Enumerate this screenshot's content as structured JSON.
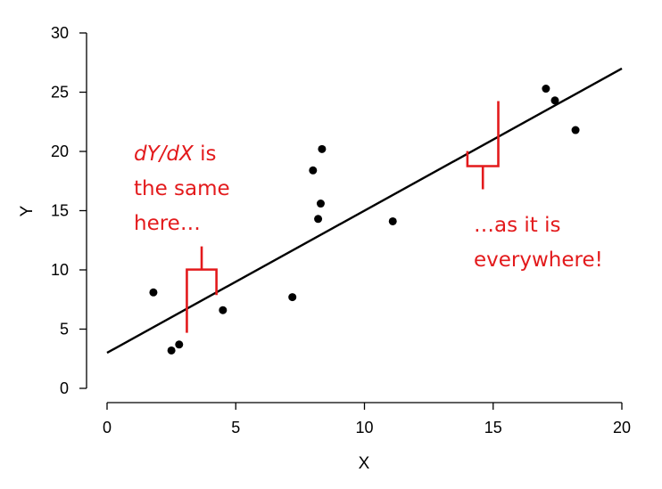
{
  "chart_data": {
    "type": "scatter",
    "title": "",
    "xlabel": "X",
    "ylabel": "Y",
    "xlim": [
      0,
      20
    ],
    "ylim": [
      0,
      30
    ],
    "xticks": [
      0,
      5,
      10,
      15,
      20
    ],
    "yticks": [
      0,
      5,
      10,
      15,
      20,
      25,
      30
    ],
    "grid": false,
    "points": [
      {
        "x": 1.8,
        "y": 8.1
      },
      {
        "x": 2.5,
        "y": 3.2
      },
      {
        "x": 2.8,
        "y": 3.7
      },
      {
        "x": 4.5,
        "y": 6.6
      },
      {
        "x": 7.2,
        "y": 7.7
      },
      {
        "x": 8.0,
        "y": 18.4
      },
      {
        "x": 8.2,
        "y": 14.3
      },
      {
        "x": 8.3,
        "y": 15.6
      },
      {
        "x": 8.35,
        "y": 20.2
      },
      {
        "x": 11.1,
        "y": 14.1
      },
      {
        "x": 17.05,
        "y": 25.3
      },
      {
        "x": 17.4,
        "y": 24.3
      },
      {
        "x": 18.2,
        "y": 21.8
      }
    ],
    "regression_line": {
      "intercept": 3.0,
      "slope": 1.2,
      "x_from": 0,
      "x_to": 20
    },
    "annotations": [
      {
        "lines": [
          [
            {
              "text": "dY/dX",
              "italic": true
            },
            {
              "text": " is",
              "italic": false
            }
          ],
          [
            {
              "text": "the same",
              "italic": false
            }
          ],
          [
            {
              "text": "here…",
              "italic": false
            }
          ]
        ],
        "bracket": {
          "x1": 3.1,
          "x2": 4.25
        }
      },
      {
        "lines": [
          [
            {
              "text": "…as it is",
              "italic": false
            }
          ],
          [
            {
              "text": "everywhere!",
              "italic": false
            }
          ]
        ],
        "bracket": {
          "x1": 14.0,
          "x2": 15.2
        }
      }
    ],
    "colors": {
      "points": "#000000",
      "line": "#000000",
      "annotation": "#e31a1c"
    }
  }
}
